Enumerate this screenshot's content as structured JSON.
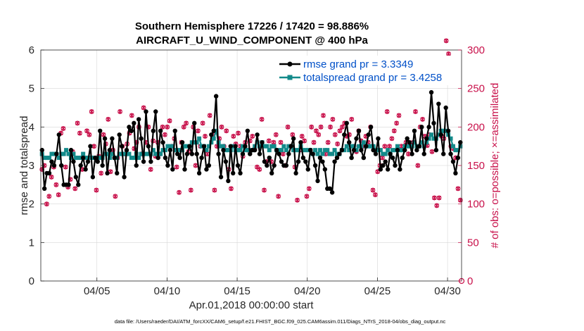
{
  "chart_data": {
    "type": "line",
    "title": "Southern Hemisphere 17226 / 17420 = 98.886%",
    "subtitle": "AIRCRAFT_U_WIND_COMPONENT @ 400 hPa",
    "xlabel": "Apr.01,2018 00:00:00 start",
    "ylabel": "rmse and totalspread",
    "ylabel_right": "# of obs: o=possible; ×=assimilated",
    "footer": "data file: /Users/raeder/DAI/ATM_forcXX/CAM6_setup/f.e21.FHIST_BGC.f09_025.CAM6assim.011/Diags_NTrS_2018-04/obs_diag_output.nc",
    "xlim": [
      1,
      31
    ],
    "ylim": [
      0,
      6
    ],
    "ylim_right": [
      0,
      300
    ],
    "x_ticks": [
      5,
      10,
      15,
      20,
      25,
      30
    ],
    "x_tick_labels": [
      "04/05",
      "04/10",
      "04/15",
      "04/20",
      "04/25",
      "04/30"
    ],
    "y_ticks": [
      0,
      1,
      2,
      3,
      4,
      5,
      6
    ],
    "y_tick_labels": [
      "0",
      "1",
      "2",
      "3",
      "4",
      "5",
      "6"
    ],
    "y_right_ticks": [
      0,
      50,
      100,
      150,
      200,
      250,
      300
    ],
    "y_right_tick_labels": [
      "0",
      "50",
      "100",
      "150",
      "200",
      "250",
      "300"
    ],
    "colors": {
      "rmse": "#000000",
      "spread": "#138a8a",
      "obs": "#c8104a"
    },
    "legend": [
      {
        "name": "rmse",
        "label": "rmse grand pr = 3.3349"
      },
      {
        "name": "totalspread",
        "label": "totalspread grand pr = 3.4258"
      }
    ],
    "series": [
      {
        "name": "rmse",
        "axis": "left",
        "values": [
          3.4,
          2.4,
          2.8,
          2.8,
          3.1,
          3.0,
          3.3,
          3.8,
          3.0,
          2.5,
          2.5,
          2.5,
          3.4,
          3.1,
          2.7,
          2.5,
          3.0,
          3.2,
          2.9,
          3.1,
          3.5,
          2.7,
          3.2,
          3.1,
          3.9,
          3.0,
          3.7,
          2.8,
          3.4,
          3.7,
          3.2,
          2.8,
          3.8,
          3.5,
          2.7,
          3.4,
          4.0,
          3.9,
          4.1,
          3.0,
          4.2,
          3.7,
          3.1,
          4.4,
          3.5,
          3.1,
          3.9,
          4.4,
          3.2,
          3.9,
          3.6,
          3.2,
          3.0,
          3.4,
          2.9,
          3.9,
          3.3,
          3.2,
          3.6,
          2.9,
          3.3,
          3.5,
          3.3,
          4.1,
          3.3,
          2.8,
          3.2,
          3.5,
          2.9,
          3.0,
          3.8,
          3.9,
          4.8,
          3.3,
          2.7,
          3.4,
          3.1,
          2.6,
          3.5,
          2.8,
          3.5,
          3.0,
          2.8,
          3.3,
          3.5,
          3.9,
          3.3,
          3.4,
          3.4,
          3.8,
          3.3,
          3.6,
          3.1,
          3.0,
          3.2,
          2.8,
          3.0,
          3.4,
          3.3,
          3.1,
          3.0,
          3.0,
          3.3,
          3.5,
          3.7,
          2.8,
          3.1,
          3.6,
          3.2,
          3.1,
          2.9,
          3.4,
          3.3,
          3.0,
          2.6,
          3.2,
          3.1,
          2.9,
          2.4,
          2.4,
          2.3,
          3.1,
          3.2,
          3.3,
          3.4,
          3.8,
          4.1,
          3.6,
          3.2,
          3.4,
          3.7,
          3.9,
          3.4,
          3.2,
          3.5,
          3.8,
          4.0,
          3.4,
          3.3,
          3.7,
          2.9,
          3.0,
          3.1,
          2.9,
          3.3,
          3.2,
          3.0,
          3.4,
          2.9,
          3.2,
          3.4,
          3.7,
          3.6,
          3.3,
          3.9,
          3.4,
          3.5,
          4.0,
          3.3,
          3.7,
          4.0,
          4.9,
          4.1,
          3.4,
          4.6,
          3.8,
          3.3,
          4.5,
          3.9,
          3.3,
          3.1,
          2.8,
          3.2,
          3.6
        ]
      },
      {
        "name": "totalspread",
        "axis": "left",
        "values": [
          3.3,
          3.2,
          3.2,
          3.2,
          3.3,
          3.3,
          3.3,
          3.2,
          3.3,
          3.3,
          3.4,
          3.3,
          3.2,
          3.3,
          3.2,
          3.2,
          3.2,
          3.3,
          3.2,
          3.2,
          3.2,
          3.2,
          3.2,
          3.2,
          3.2,
          3.2,
          3.3,
          3.3,
          3.2,
          3.3,
          3.2,
          3.2,
          3.3,
          3.3,
          3.3,
          3.3,
          3.3,
          3.2,
          3.2,
          3.3,
          3.2,
          3.3,
          3.3,
          3.3,
          3.3,
          3.3,
          3.4,
          3.3,
          3.3,
          3.3,
          3.4,
          3.4,
          3.5,
          3.5,
          3.5,
          3.4,
          3.4,
          3.4,
          3.4,
          3.5,
          3.5,
          3.5,
          3.6,
          3.6,
          3.6,
          3.7,
          3.5,
          3.5,
          3.4,
          3.5,
          3.6,
          3.7,
          3.9,
          3.6,
          3.5,
          3.5,
          3.4,
          3.4,
          3.4,
          3.5,
          3.4,
          3.4,
          3.4,
          3.5,
          3.4,
          3.4,
          3.4,
          3.4,
          3.5,
          3.6,
          3.5,
          3.6,
          3.5,
          3.5,
          3.4,
          3.5,
          3.5,
          3.4,
          3.4,
          3.4,
          3.5,
          3.4,
          3.5,
          3.5,
          3.4,
          3.4,
          3.4,
          3.5,
          3.4,
          3.4,
          3.4,
          3.4,
          3.3,
          3.4,
          3.3,
          3.4,
          3.3,
          3.4,
          3.4,
          3.3,
          3.3,
          3.4,
          3.3,
          3.3,
          3.4,
          3.4,
          3.5,
          3.4,
          3.5,
          3.5,
          3.4,
          3.5,
          3.5,
          3.6,
          3.5,
          3.5,
          3.5,
          3.5,
          3.4,
          3.4,
          3.4,
          3.3,
          3.3,
          3.4,
          3.3,
          3.4,
          3.4,
          3.5,
          3.4,
          3.4,
          3.5,
          3.5,
          3.5,
          3.5,
          3.6,
          3.5,
          3.5,
          3.6,
          3.5,
          3.6,
          3.7,
          3.8,
          3.7,
          3.7,
          3.8,
          3.9,
          3.9,
          3.9,
          3.8,
          3.7,
          3.5,
          3.4,
          3.4,
          3.5
        ]
      },
      {
        "name": "obs_possible",
        "axis": "right",
        "values": [
          145,
          150,
          100,
          110,
          135,
          148,
          125,
          112,
          192,
          198,
          148,
          122,
          132,
          168,
          120,
          205,
          192,
          145,
          160,
          195,
          190,
          220,
          175,
          118,
          162,
          140,
          190,
          178,
          210,
          142,
          170,
          110,
          160,
          220,
          175,
          165,
          178,
          192,
          215,
          172,
          180,
          200,
          165,
          225,
          180,
          200,
          145,
          182,
          162,
          180,
          165,
          200,
          190,
          200,
          208,
          175,
          185,
          148,
          115,
          180,
          200,
          205,
          168,
          118,
          200,
          150,
          195,
          175,
          205,
          188,
          165,
          215,
          190,
          118,
          175,
          185,
          200,
          175,
          195,
          145,
          120,
          188,
          178,
          192,
          175,
          162,
          180,
          170,
          182,
          188,
          172,
          148,
          145,
          210,
          118,
          155,
          182,
          155,
          180,
          190,
          110,
          180,
          165,
          150,
          200,
          175,
          190,
          148,
          105,
          170,
          188,
          182,
          110,
          120,
          200,
          180,
          195,
          190,
          200,
          215,
          165,
          180,
          200,
          210,
          190,
          178,
          195,
          200,
          205,
          188,
          190,
          210,
          175,
          168,
          195,
          182,
          175,
          188,
          180,
          200,
          118,
          112,
          142,
          150,
          160,
          175,
          220,
          175,
          185,
          195,
          205,
          215,
          175,
          175,
          180,
          165,
          175,
          180,
          220,
          150,
          200,
          210,
          188,
          176,
          190,
          168,
          108,
          98,
          108,
          188,
          185,
          312,
          295,
          175,
          172,
          160,
          120,
          105
        ]
      }
    ]
  }
}
